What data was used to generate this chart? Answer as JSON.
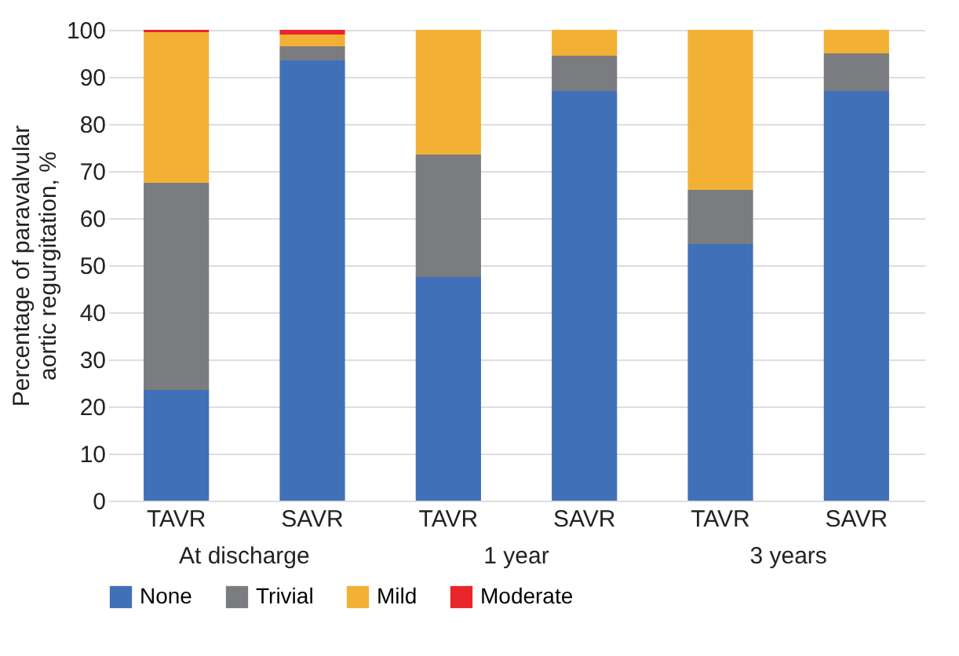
{
  "chart_data": {
    "type": "bar",
    "stacked": true,
    "ylabel": "Percentage of paravalvular aortic regurgitation, %",
    "categories": [
      "TAVR",
      "SAVR",
      "TAVR",
      "SAVR",
      "TAVR",
      "SAVR"
    ],
    "annotations": [
      "At discharge",
      "1 year",
      "3 years"
    ],
    "series": [
      {
        "name": "None",
        "color": "#4070b8",
        "values": [
          23.5,
          93.5,
          47.5,
          87,
          54.5,
          87
        ]
      },
      {
        "name": "Trivial",
        "color": "#7b7c80",
        "values": [
          44,
          3,
          26,
          7.5,
          11.5,
          8
        ]
      },
      {
        "name": "Mild",
        "color": "#f2b134",
        "values": [
          32,
          2.5,
          26.5,
          5.5,
          34,
          5
        ]
      },
      {
        "name": "Moderate",
        "color": "#e8262b",
        "values": [
          0.5,
          1,
          null,
          null,
          null,
          null
        ]
      }
    ],
    "ylim": [
      0,
      100
    ],
    "yticks": [
      0,
      10,
      20,
      30,
      40,
      50,
      60,
      70,
      80,
      90,
      100
    ],
    "grid": "y",
    "legend": "bottom"
  }
}
